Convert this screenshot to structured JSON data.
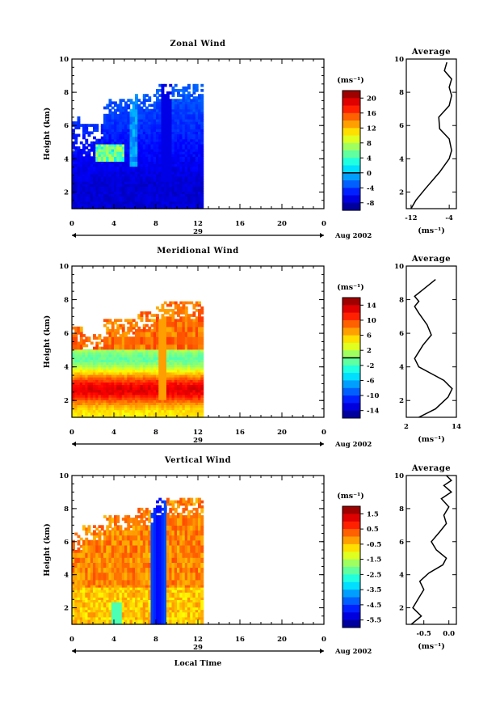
{
  "chart_data": [
    {
      "type": "heatmap",
      "title": "Zonal Wind",
      "ylabel": "Height (km)",
      "yticks": [
        "2",
        "4",
        "6",
        "8",
        "10"
      ],
      "xticks": [
        "0",
        "4",
        "8",
        "12",
        "16",
        "20",
        "0"
      ],
      "date_label": "29",
      "month_label": "Aug 2002",
      "xlim": [
        0,
        24
      ],
      "ylim": [
        1,
        10
      ],
      "data_extent_hours": [
        0,
        12.5
      ],
      "colorbar": {
        "unit": "(ms⁻¹)",
        "ticks": [
          "20",
          "16",
          "12",
          "8",
          "4",
          "0",
          "-4",
          "-8"
        ],
        "range": [
          -10,
          22
        ],
        "contour": 0
      },
      "average": {
        "title": "Average",
        "xticks": [
          "-12",
          "-4"
        ],
        "xlabel": "(ms⁻¹)",
        "yticks": [
          "2",
          "4",
          "6",
          "8",
          "10"
        ],
        "xlim": [
          -13,
          -2.5
        ],
        "profile": [
          [
            -12,
            1.0
          ],
          [
            -11,
            1.5
          ],
          [
            -9,
            2.2
          ],
          [
            -6,
            3.2
          ],
          [
            -4,
            4.0
          ],
          [
            -3.5,
            4.5
          ],
          [
            -4,
            5.2
          ],
          [
            -6,
            5.8
          ],
          [
            -6.2,
            6.5
          ],
          [
            -4,
            7.2
          ],
          [
            -3.5,
            7.8
          ],
          [
            -4,
            8.3
          ],
          [
            -3.5,
            8.8
          ],
          [
            -5,
            9.3
          ],
          [
            -4.5,
            9.8
          ]
        ]
      }
    },
    {
      "type": "heatmap",
      "title": "Meridional Wind",
      "ylabel": "Height (km)",
      "yticks": [
        "2",
        "4",
        "6",
        "8",
        "10"
      ],
      "xticks": [
        "0",
        "4",
        "8",
        "12",
        "16",
        "20",
        "0"
      ],
      "date_label": "29",
      "month_label": "Aug 2002",
      "xlim": [
        0,
        24
      ],
      "ylim": [
        1,
        10
      ],
      "data_extent_hours": [
        0,
        12.5
      ],
      "colorbar": {
        "unit": "(ms⁻¹)",
        "ticks": [
          "14",
          "10",
          "6",
          "2",
          "-2",
          "-6",
          "-10",
          "-14"
        ],
        "range": [
          -16,
          16
        ],
        "contour": 0
      },
      "average": {
        "title": "Average",
        "xticks": [
          "2",
          "14"
        ],
        "xlabel": "(ms⁻¹)",
        "yticks": [
          "2",
          "4",
          "6",
          "8",
          "10"
        ],
        "xlim": [
          2,
          14
        ],
        "profile": [
          [
            5,
            1.0
          ],
          [
            9,
            1.5
          ],
          [
            12,
            2.2
          ],
          [
            13,
            2.7
          ],
          [
            11,
            3.2
          ],
          [
            8,
            3.6
          ],
          [
            5,
            4.0
          ],
          [
            4,
            4.5
          ],
          [
            6,
            5.3
          ],
          [
            8,
            5.9
          ],
          [
            7,
            6.5
          ],
          [
            5,
            7.2
          ],
          [
            4,
            7.6
          ],
          [
            5,
            7.9
          ],
          [
            4,
            8.2
          ],
          [
            6,
            8.6
          ],
          [
            8,
            9.0
          ],
          [
            9,
            9.2
          ]
        ]
      }
    },
    {
      "type": "heatmap",
      "title": "Vertical Wind",
      "ylabel": "Height (km)",
      "xlabel": "Local Time",
      "yticks": [
        "2",
        "4",
        "6",
        "8",
        "10"
      ],
      "xticks": [
        "0",
        "4",
        "8",
        "12",
        "16",
        "20",
        "0"
      ],
      "date_label": "29",
      "month_label": "Aug 2002",
      "xlim": [
        0,
        24
      ],
      "ylim": [
        1,
        10
      ],
      "data_extent_hours": [
        0,
        12.5
      ],
      "colorbar": {
        "unit": "(ms⁻¹)",
        "ticks": [
          "1.5",
          "0.5",
          "-0.5",
          "-1.5",
          "-2.5",
          "-3.5",
          "-4.5",
          "-5.5"
        ],
        "range": [
          -6,
          2
        ],
        "contour": null
      },
      "average": {
        "title": "Average",
        "xticks": [
          "-0.5",
          "0.0"
        ],
        "xlabel": "(ms⁻¹)",
        "yticks": [
          "2",
          "4",
          "6",
          "8",
          "10"
        ],
        "xlim": [
          -0.85,
          0.15
        ],
        "profile": [
          [
            -0.75,
            1.0
          ],
          [
            -0.55,
            1.5
          ],
          [
            -0.72,
            2.0
          ],
          [
            -0.6,
            2.6
          ],
          [
            -0.5,
            3.1
          ],
          [
            -0.58,
            3.6
          ],
          [
            -0.4,
            4.1
          ],
          [
            -0.12,
            4.6
          ],
          [
            -0.05,
            5.0
          ],
          [
            -0.25,
            5.5
          ],
          [
            -0.35,
            6.0
          ],
          [
            -0.18,
            6.6
          ],
          [
            -0.05,
            7.1
          ],
          [
            -0.1,
            7.6
          ],
          [
            0.0,
            8.1
          ],
          [
            -0.15,
            8.6
          ],
          [
            0.05,
            9.0
          ],
          [
            -0.1,
            9.4
          ],
          [
            0.05,
            9.7
          ],
          [
            -0.05,
            10.0
          ]
        ]
      }
    }
  ]
}
